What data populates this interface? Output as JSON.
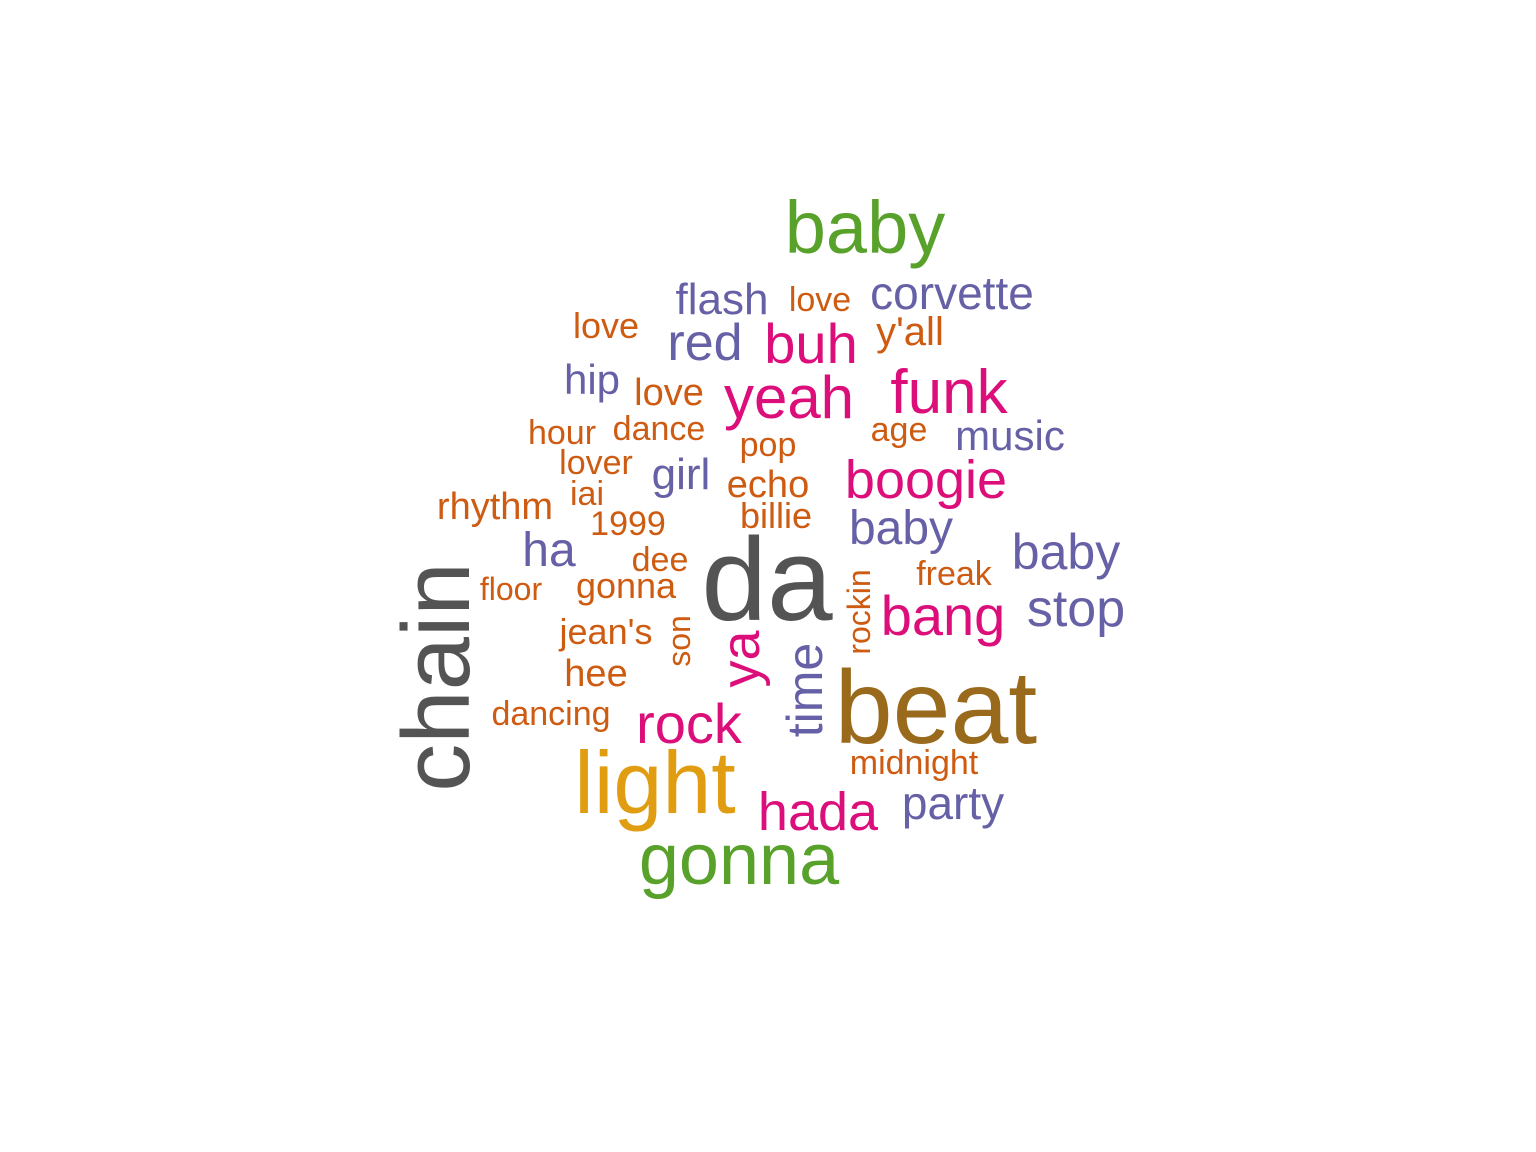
{
  "palette": {
    "green": "#58a12a",
    "purple": "#6660a6",
    "orange": "#ce5b12",
    "magenta": "#dc0e7a",
    "gray": "#545454",
    "brown": "#9a6a1c",
    "gold": "#e09d12"
  },
  "words": [
    {
      "text": "baby",
      "color": "green"
    },
    {
      "text": "flash",
      "color": "purple"
    },
    {
      "text": "love",
      "color": "orange"
    },
    {
      "text": "corvette",
      "color": "purple"
    },
    {
      "text": "love",
      "color": "orange"
    },
    {
      "text": "red",
      "color": "purple"
    },
    {
      "text": "buh",
      "color": "magenta"
    },
    {
      "text": "y'all",
      "color": "orange"
    },
    {
      "text": "hip",
      "color": "purple"
    },
    {
      "text": "love",
      "color": "orange"
    },
    {
      "text": "yeah",
      "color": "magenta"
    },
    {
      "text": "funk",
      "color": "magenta"
    },
    {
      "text": "hour",
      "color": "orange"
    },
    {
      "text": "dance",
      "color": "orange"
    },
    {
      "text": "pop",
      "color": "orange"
    },
    {
      "text": "age",
      "color": "orange"
    },
    {
      "text": "music",
      "color": "purple"
    },
    {
      "text": "lover",
      "color": "orange"
    },
    {
      "text": "girl",
      "color": "purple"
    },
    {
      "text": "echo",
      "color": "orange"
    },
    {
      "text": "boogie",
      "color": "magenta"
    },
    {
      "text": "iai",
      "color": "orange"
    },
    {
      "text": "rhythm",
      "color": "orange"
    },
    {
      "text": "billie",
      "color": "orange"
    },
    {
      "text": "1999",
      "color": "orange"
    },
    {
      "text": "baby",
      "color": "purple"
    },
    {
      "text": "ha",
      "color": "purple"
    },
    {
      "text": "dee",
      "color": "orange"
    },
    {
      "text": "baby",
      "color": "purple"
    },
    {
      "text": "da",
      "color": "gray"
    },
    {
      "text": "freak",
      "color": "orange"
    },
    {
      "text": "chain",
      "color": "gray"
    },
    {
      "text": "floor",
      "color": "orange"
    },
    {
      "text": "gonna",
      "color": "orange"
    },
    {
      "text": "rockin",
      "color": "orange"
    },
    {
      "text": "stop",
      "color": "purple"
    },
    {
      "text": "bang",
      "color": "magenta"
    },
    {
      "text": "jean's",
      "color": "orange"
    },
    {
      "text": "son",
      "color": "orange"
    },
    {
      "text": "ya",
      "color": "magenta"
    },
    {
      "text": "hee",
      "color": "orange"
    },
    {
      "text": "time",
      "color": "purple"
    },
    {
      "text": "beat",
      "color": "brown"
    },
    {
      "text": "dancing",
      "color": "orange"
    },
    {
      "text": "rock",
      "color": "magenta"
    },
    {
      "text": "midnight",
      "color": "orange"
    },
    {
      "text": "light",
      "color": "gold"
    },
    {
      "text": "party",
      "color": "purple"
    },
    {
      "text": "hada",
      "color": "magenta"
    },
    {
      "text": "gonna",
      "color": "green"
    }
  ]
}
